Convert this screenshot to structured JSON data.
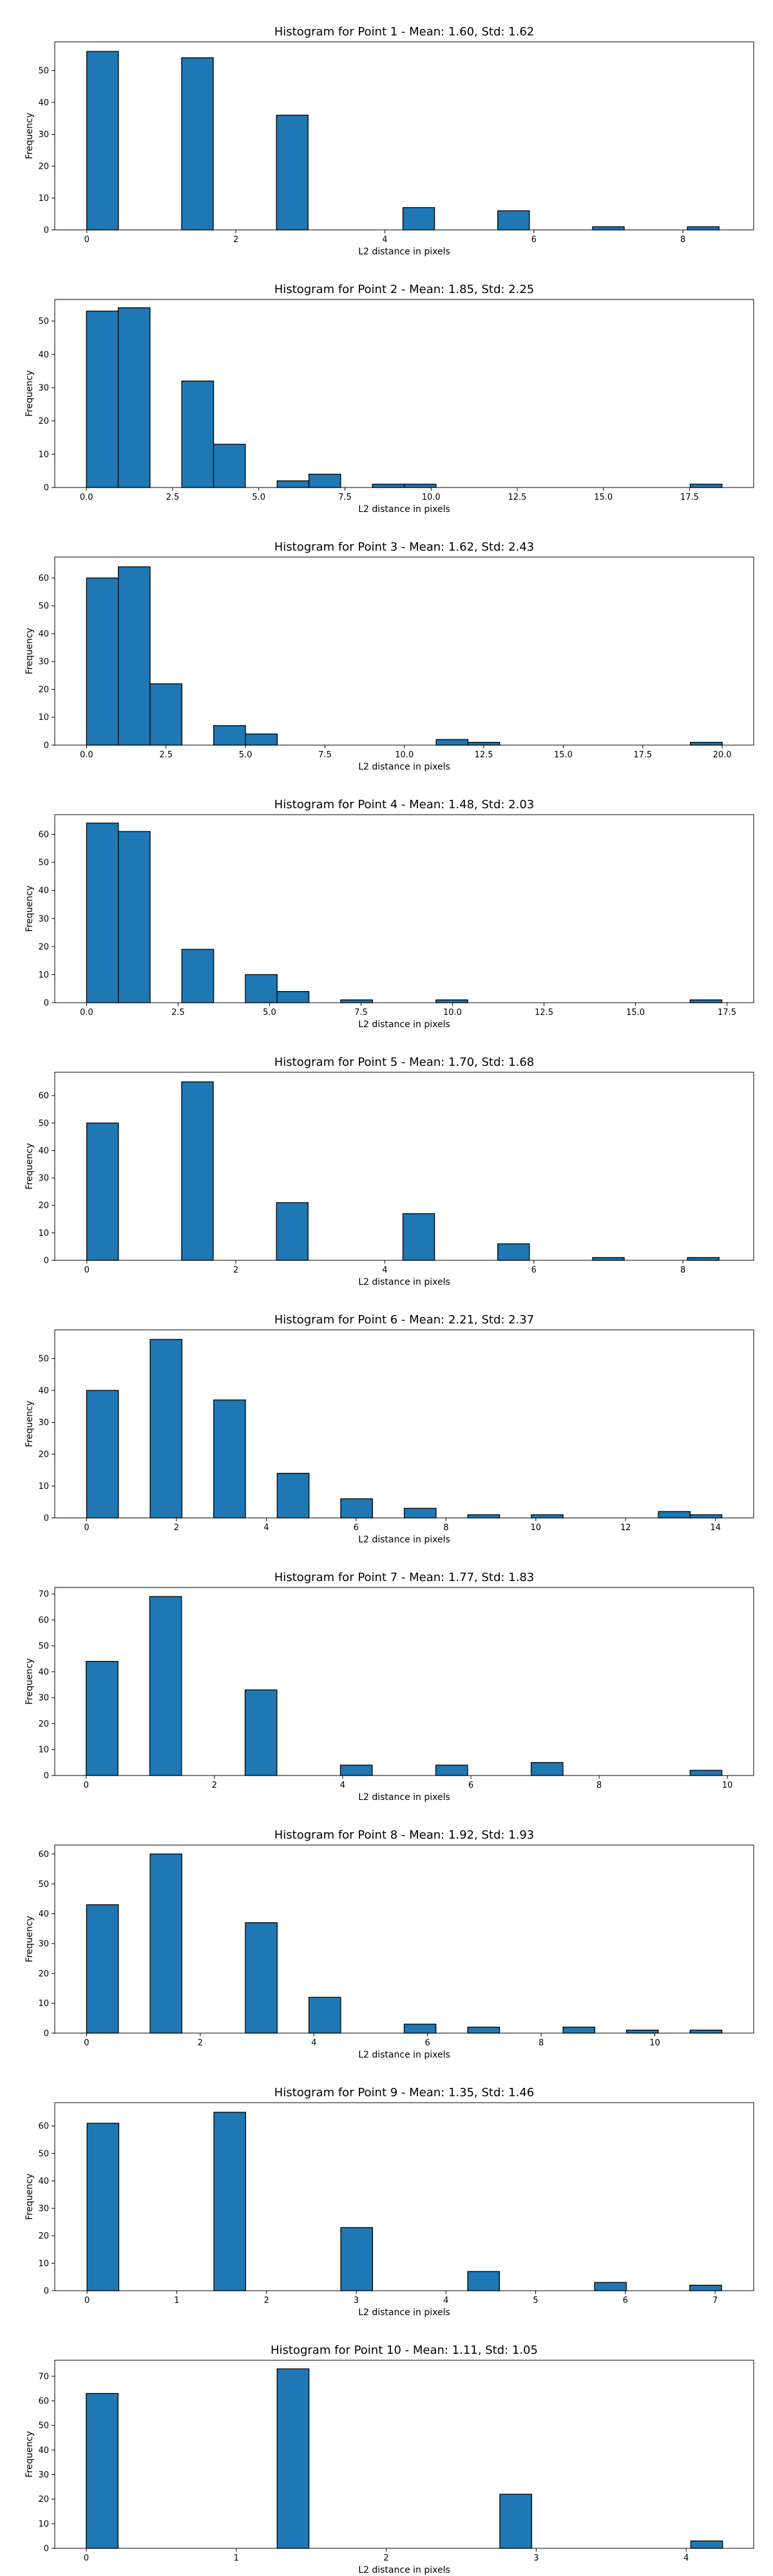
{
  "style": {
    "bar_color": "#1f77b4",
    "edge_color": "#000000",
    "background": "#ffffff"
  },
  "chart_data": [
    {
      "type": "bar",
      "title": "Histogram for Point 1 - Mean: 1.60, Std: 1.62",
      "xlabel": "L2 distance in pixels",
      "ylabel": "Frequency",
      "xlim": [
        -0.43,
        8.95
      ],
      "ylim": [
        0,
        59
      ],
      "xticks": [
        0,
        2,
        4,
        6,
        8
      ],
      "xtick_labels": [
        "0",
        "2",
        "4",
        "6",
        "8"
      ],
      "yticks": [
        0,
        10,
        20,
        30,
        40,
        50
      ],
      "bin_edges": [
        0.0,
        0.4243,
        0.8485,
        1.2728,
        1.6971,
        2.1213,
        2.5456,
        2.9698,
        3.3941,
        3.8184,
        4.2426,
        4.6669,
        5.0912,
        5.5154,
        5.9397,
        6.364,
        6.7882,
        7.2125,
        7.6368,
        8.061,
        8.4853
      ],
      "counts": [
        56,
        0,
        0,
        54,
        0,
        0,
        36,
        0,
        0,
        0,
        7,
        0,
        0,
        6,
        0,
        0,
        1,
        0,
        0,
        1
      ],
      "grid": false
    },
    {
      "type": "bar",
      "title": "Histogram for Point 2 - Mean: 1.85, Std: 2.25",
      "xlabel": "L2 distance in pixels",
      "ylabel": "Frequency",
      "xlim": [
        -0.92,
        19.36
      ],
      "ylim": [
        0,
        56.5
      ],
      "xticks": [
        0,
        2.5,
        5,
        7.5,
        10,
        12.5,
        15,
        17.5
      ],
      "xtick_labels": [
        "0.0",
        "2.5",
        "5.0",
        "7.5",
        "10.0",
        "12.5",
        "15.0",
        "17.5"
      ],
      "yticks": [
        0,
        10,
        20,
        30,
        40,
        50
      ],
      "bin_edges": [
        0.0,
        0.922,
        1.844,
        2.766,
        3.688,
        4.61,
        5.532,
        6.454,
        7.376,
        8.298,
        9.22,
        10.142,
        11.064,
        11.986,
        12.908,
        13.83,
        14.752,
        15.674,
        16.596,
        17.518,
        18.44
      ],
      "counts": [
        53,
        54,
        0,
        32,
        13,
        0,
        2,
        4,
        0,
        1,
        1,
        0,
        0,
        0,
        0,
        0,
        0,
        0,
        0,
        1
      ],
      "grid": false
    },
    {
      "type": "bar",
      "title": "Histogram for Point 3 - Mean: 1.62, Std: 2.43",
      "xlabel": "L2 distance in pixels",
      "ylabel": "Frequency",
      "xlim": [
        -1.0,
        20.99
      ],
      "ylim": [
        0,
        67.5
      ],
      "xticks": [
        0,
        2.5,
        5,
        7.5,
        10,
        12.5,
        15,
        17.5,
        20
      ],
      "xtick_labels": [
        "0.0",
        "2.5",
        "5.0",
        "7.5",
        "10.0",
        "12.5",
        "15.0",
        "17.5",
        "20.0"
      ],
      "yticks": [
        0,
        10,
        20,
        30,
        40,
        50,
        60
      ],
      "bin_edges": [
        0.0,
        1.0,
        2.0,
        3.0,
        4.0,
        5.0,
        6.0,
        7.0,
        8.0,
        9.0,
        10.0,
        11.0,
        12.0,
        13.0,
        14.0,
        15.0,
        16.0,
        17.0,
        18.0,
        19.0,
        20.0
      ],
      "counts": [
        60,
        64,
        22,
        0,
        7,
        4,
        0,
        0,
        0,
        0,
        0,
        2,
        1,
        0,
        0,
        0,
        0,
        0,
        0,
        1
      ],
      "grid": false
    },
    {
      "type": "bar",
      "title": "Histogram for Point 4 - Mean: 1.48, Std: 2.03",
      "xlabel": "L2 distance in pixels",
      "ylabel": "Frequency",
      "xlim": [
        -0.87,
        18.23
      ],
      "ylim": [
        0,
        67
      ],
      "xticks": [
        0,
        2.5,
        5,
        7.5,
        10,
        12.5,
        15,
        17.5
      ],
      "xtick_labels": [
        "0.0",
        "2.5",
        "5.0",
        "7.5",
        "10.0",
        "12.5",
        "15.0",
        "17.5"
      ],
      "yticks": [
        0,
        10,
        20,
        30,
        40,
        50,
        60
      ],
      "bin_edges": [
        0.0,
        0.868,
        1.736,
        2.604,
        3.472,
        4.34,
        5.208,
        6.076,
        6.944,
        7.812,
        8.68,
        9.548,
        10.416,
        11.284,
        12.152,
        13.02,
        13.888,
        14.756,
        15.624,
        16.492,
        17.36
      ],
      "counts": [
        64,
        61,
        0,
        19,
        0,
        10,
        4,
        0,
        1,
        0,
        0,
        1,
        0,
        0,
        0,
        0,
        0,
        0,
        0,
        1
      ],
      "grid": false
    },
    {
      "type": "bar",
      "title": "Histogram for Point 5 - Mean: 1.70, Std: 1.68",
      "xlabel": "L2 distance in pixels",
      "ylabel": "Frequency",
      "xlim": [
        -0.43,
        8.95
      ],
      "ylim": [
        0,
        68.5
      ],
      "xticks": [
        0,
        2,
        4,
        6,
        8
      ],
      "xtick_labels": [
        "0",
        "2",
        "4",
        "6",
        "8"
      ],
      "yticks": [
        0,
        10,
        20,
        30,
        40,
        50,
        60
      ],
      "bin_edges": [
        0.0,
        0.4243,
        0.8485,
        1.2728,
        1.6971,
        2.1213,
        2.5456,
        2.9698,
        3.3941,
        3.8184,
        4.2426,
        4.6669,
        5.0912,
        5.5154,
        5.9397,
        6.364,
        6.7882,
        7.2125,
        7.6368,
        8.061,
        8.4853
      ],
      "counts": [
        50,
        0,
        0,
        65,
        0,
        0,
        21,
        0,
        0,
        0,
        17,
        0,
        0,
        6,
        0,
        0,
        1,
        0,
        0,
        1
      ],
      "grid": false
    },
    {
      "type": "bar",
      "title": "Histogram for Point 6 - Mean: 2.21, Std: 2.37",
      "xlabel": "L2 distance in pixels",
      "ylabel": "Frequency",
      "xlim": [
        -0.71,
        14.85
      ],
      "ylim": [
        0,
        59
      ],
      "xticks": [
        0,
        2,
        4,
        6,
        8,
        10,
        12,
        14
      ],
      "xtick_labels": [
        "0",
        "2",
        "4",
        "6",
        "8",
        "10",
        "12",
        "14"
      ],
      "yticks": [
        0,
        10,
        20,
        30,
        40,
        50
      ],
      "bin_edges": [
        0.0,
        0.7071,
        1.4142,
        2.1213,
        2.8284,
        3.5355,
        4.2426,
        4.9497,
        5.6569,
        6.364,
        7.0711,
        7.7782,
        8.4853,
        9.1924,
        9.8995,
        10.6066,
        11.3137,
        12.0208,
        12.7279,
        13.435,
        14.1421
      ],
      "counts": [
        40,
        0,
        56,
        0,
        37,
        0,
        14,
        0,
        6,
        0,
        3,
        0,
        1,
        0,
        1,
        0,
        0,
        0,
        2,
        1
      ],
      "grid": false
    },
    {
      "type": "bar",
      "title": "Histogram for Point 7 - Mean: 1.77, Std: 1.83",
      "xlabel": "L2 distance in pixels",
      "ylabel": "Frequency",
      "xlim": [
        -0.49,
        10.41
      ],
      "ylim": [
        0,
        72.5
      ],
      "xticks": [
        0,
        2,
        4,
        6,
        8,
        10
      ],
      "xtick_labels": [
        "0",
        "2",
        "4",
        "6",
        "8",
        "10"
      ],
      "yticks": [
        0,
        10,
        20,
        30,
        40,
        50,
        60,
        70
      ],
      "bin_edges": [
        0.0,
        0.4957,
        0.9914,
        1.4871,
        1.9828,
        2.4785,
        2.9742,
        3.4699,
        3.9656,
        4.4613,
        4.957,
        5.4527,
        5.9484,
        6.4441,
        6.9398,
        7.4355,
        7.9312,
        8.4269,
        8.9226,
        9.4183,
        9.914
      ],
      "counts": [
        44,
        0,
        69,
        0,
        0,
        33,
        0,
        0,
        4,
        0,
        0,
        4,
        0,
        0,
        5,
        0,
        0,
        0,
        0,
        2
      ],
      "grid": false
    },
    {
      "type": "bar",
      "title": "Histogram for Point 8 - Mean: 1.92, Std: 1.93",
      "xlabel": "L2 distance in pixels",
      "ylabel": "Frequency",
      "xlim": [
        -0.56,
        11.74
      ],
      "ylim": [
        0,
        63
      ],
      "xticks": [
        0,
        2,
        4,
        6,
        8,
        10
      ],
      "xtick_labels": [
        "0",
        "2",
        "4",
        "6",
        "8",
        "10"
      ],
      "yticks": [
        0,
        10,
        20,
        30,
        40,
        50,
        60
      ],
      "bin_edges": [
        0.0,
        0.559,
        1.118,
        1.677,
        2.236,
        2.795,
        3.354,
        3.913,
        4.472,
        5.031,
        5.59,
        6.149,
        6.708,
        7.267,
        7.826,
        8.385,
        8.944,
        9.503,
        10.062,
        10.621,
        11.18
      ],
      "counts": [
        43,
        0,
        60,
        0,
        0,
        37,
        0,
        12,
        0,
        0,
        3,
        0,
        2,
        0,
        0,
        2,
        0,
        1,
        0,
        1
      ],
      "grid": false
    },
    {
      "type": "bar",
      "title": "Histogram for Point 9 - Mean: 1.35, Std: 1.46",
      "xlabel": "L2 distance in pixels",
      "ylabel": "Frequency",
      "xlim": [
        -0.36,
        7.43
      ],
      "ylim": [
        0,
        68.5
      ],
      "xticks": [
        0,
        1,
        2,
        3,
        4,
        5,
        6,
        7
      ],
      "xtick_labels": [
        "0",
        "1",
        "2",
        "3",
        "4",
        "5",
        "6",
        "7"
      ],
      "yticks": [
        0,
        10,
        20,
        30,
        40,
        50,
        60
      ],
      "bin_edges": [
        0.0,
        0.3536,
        0.7071,
        1.0607,
        1.4142,
        1.7678,
        2.1213,
        2.4749,
        2.8284,
        3.182,
        3.5355,
        3.8891,
        4.2426,
        4.5962,
        4.9497,
        5.3033,
        5.6569,
        6.0104,
        6.364,
        6.7175,
        7.0711
      ],
      "counts": [
        61,
        0,
        0,
        0,
        65,
        0,
        0,
        0,
        23,
        0,
        0,
        0,
        7,
        0,
        0,
        0,
        3,
        0,
        0,
        2
      ],
      "grid": false
    },
    {
      "type": "bar",
      "title": "Histogram for Point 10 - Mean: 1.11, Std: 1.05",
      "xlabel": "L2 distance in pixels",
      "ylabel": "Frequency",
      "xlim": [
        -0.21,
        4.45
      ],
      "ylim": [
        0,
        76.5
      ],
      "xticks": [
        0,
        1,
        2,
        3,
        4
      ],
      "xtick_labels": [
        "0",
        "1",
        "2",
        "3",
        "4"
      ],
      "yticks": [
        0,
        10,
        20,
        30,
        40,
        50,
        60,
        70
      ],
      "bin_edges": [
        0.0,
        0.2121,
        0.4243,
        0.6364,
        0.8485,
        1.0607,
        1.2728,
        1.4849,
        1.6971,
        1.9092,
        2.1213,
        2.3335,
        2.5456,
        2.7577,
        2.9698,
        3.182,
        3.3941,
        3.6062,
        3.8184,
        4.0305,
        4.2426
      ],
      "counts": [
        63,
        0,
        0,
        0,
        0,
        0,
        73,
        0,
        0,
        0,
        0,
        0,
        0,
        22,
        0,
        0,
        0,
        0,
        0,
        3
      ],
      "grid": false
    }
  ]
}
